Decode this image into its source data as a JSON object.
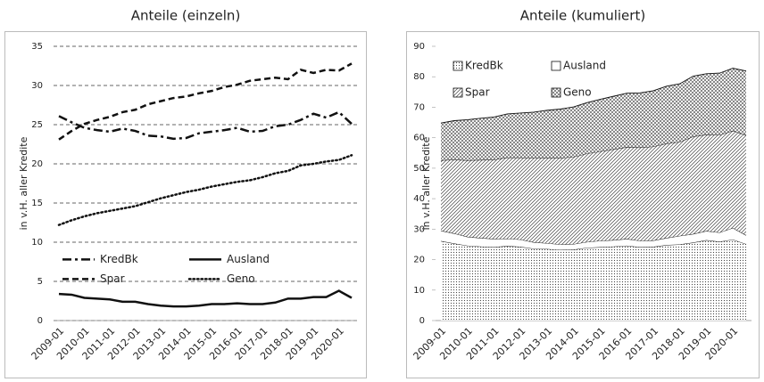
{
  "chart_data": [
    {
      "type": "line",
      "title": "Anteile (einzeln)",
      "ylabel": "in v.H. aller Kredite",
      "categories": [
        "2009-01",
        null,
        "2010-01",
        null,
        "2011-01",
        null,
        "2012-01",
        null,
        "2013-01",
        null,
        "2014-01",
        null,
        "2015-01",
        null,
        "2016-01",
        null,
        "2017-01",
        null,
        "2018-01",
        null,
        "2019-01",
        null,
        "2020-01",
        null
      ],
      "ylim": [
        0,
        35
      ],
      "yticks": [
        0,
        5,
        10,
        15,
        20,
        25,
        30,
        35
      ],
      "grid": true,
      "legend": "center left",
      "series": [
        {
          "name": "KredBk",
          "color": "#111111",
          "dash": "dashdot",
          "values": [
            26.1,
            25.3,
            24.6,
            24.3,
            24.1,
            24.5,
            24.2,
            23.6,
            23.5,
            23.2,
            23.3,
            23.9,
            24.1,
            24.3,
            24.6,
            24.1,
            24.2,
            24.8,
            25.0,
            25.6,
            26.4,
            25.9,
            26.6,
            25.1
          ]
        },
        {
          "name": "Ausland",
          "color": "#111111",
          "dash": "solid",
          "values": [
            3.4,
            3.3,
            2.9,
            2.8,
            2.7,
            2.4,
            2.4,
            2.1,
            1.9,
            1.8,
            1.8,
            1.9,
            2.1,
            2.1,
            2.2,
            2.1,
            2.1,
            2.3,
            2.8,
            2.8,
            3.0,
            3.0,
            3.8,
            2.9
          ]
        },
        {
          "name": "Spar",
          "color": "#111111",
          "dash": "dashed",
          "values": [
            23.1,
            24.2,
            25.1,
            25.6,
            26.0,
            26.6,
            26.9,
            27.6,
            28.0,
            28.4,
            28.6,
            29.0,
            29.3,
            29.8,
            30.1,
            30.6,
            30.8,
            31.0,
            30.8,
            32.0,
            31.6,
            32.0,
            31.9,
            32.8
          ]
        },
        {
          "name": "Geno",
          "color": "#111111",
          "dash": "dotted",
          "values": [
            12.2,
            12.8,
            13.3,
            13.7,
            14.0,
            14.3,
            14.6,
            15.1,
            15.6,
            16.0,
            16.4,
            16.7,
            17.1,
            17.4,
            17.7,
            17.9,
            18.3,
            18.8,
            19.1,
            19.8,
            20.0,
            20.3,
            20.5,
            21.1
          ]
        }
      ]
    },
    {
      "type": "stacked_area",
      "title": "Anteile (kumuliert)",
      "ylabel": "in v.H. aller Kredite",
      "categories": [
        "2009-01",
        null,
        "2010-01",
        null,
        "2011-01",
        null,
        "2012-01",
        null,
        "2013-01",
        null,
        "2014-01",
        null,
        "2015-01",
        null,
        "2016-01",
        null,
        "2017-01",
        null,
        "2018-01",
        null,
        "2019-01",
        null,
        "2020-01",
        null
      ],
      "ylim": [
        0,
        90
      ],
      "yticks": [
        0,
        10,
        20,
        30,
        40,
        50,
        60,
        70,
        80,
        90
      ],
      "grid": false,
      "legend": "upper left",
      "series": [
        {
          "name": "KredBk",
          "color": "#444444",
          "pattern": "dots",
          "values": [
            26.1,
            25.3,
            24.6,
            24.3,
            24.1,
            24.5,
            24.2,
            23.6,
            23.5,
            23.2,
            23.3,
            23.9,
            24.1,
            24.3,
            24.6,
            24.1,
            24.2,
            24.8,
            25.0,
            25.6,
            26.4,
            25.9,
            26.6,
            25.1
          ]
        },
        {
          "name": "Ausland",
          "color": "#ffffff",
          "pattern": "solid",
          "values": [
            3.4,
            3.3,
            2.9,
            2.8,
            2.7,
            2.4,
            2.4,
            2.1,
            1.9,
            1.8,
            1.8,
            1.9,
            2.1,
            2.1,
            2.2,
            2.1,
            2.1,
            2.3,
            2.8,
            2.8,
            3.0,
            3.0,
            3.8,
            2.9
          ]
        },
        {
          "name": "Spar",
          "color": "#444444",
          "pattern": "diagonal",
          "values": [
            23.1,
            24.2,
            25.1,
            25.6,
            26.0,
            26.6,
            26.9,
            27.6,
            28.0,
            28.4,
            28.6,
            29.0,
            29.3,
            29.8,
            30.1,
            30.6,
            30.8,
            31.0,
            30.8,
            32.0,
            31.6,
            32.0,
            31.9,
            32.8
          ]
        },
        {
          "name": "Geno",
          "color": "#444444",
          "pattern": "crosshatch",
          "values": [
            12.2,
            12.8,
            13.3,
            13.7,
            14.0,
            14.3,
            14.6,
            15.1,
            15.6,
            16.0,
            16.4,
            16.7,
            17.1,
            17.4,
            17.7,
            17.9,
            18.3,
            18.8,
            19.1,
            19.8,
            20.0,
            20.3,
            20.5,
            21.1
          ]
        }
      ]
    }
  ]
}
